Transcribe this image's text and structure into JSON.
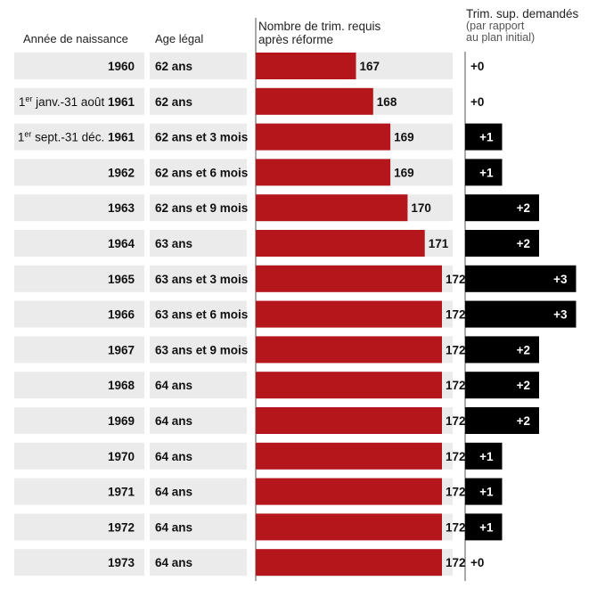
{
  "headers": {
    "year": "Année de naissance",
    "age": "Age légal",
    "quarters": "Nombre de trim. requis",
    "quarters_sub": "après réforme",
    "extra": "Trim. sup. demandés",
    "extra_sub1": "(par rapport",
    "extra_sub2": "au plan initial)"
  },
  "colors": {
    "row_bg": "#ebebeb",
    "bar": "#b5161c",
    "extra_bar": "#000000",
    "axis": "#555555"
  },
  "chart_data": {
    "type": "bar",
    "title": "",
    "xlabel": "Nombre de trim. requis après réforme",
    "ylabel": "Année de naissance",
    "grid": false,
    "legend": "none",
    "rows": [
      {
        "year_prefix": "",
        "year_sup": "",
        "year_rest": "",
        "year": "1960",
        "age": "62 ans",
        "quarters": 167,
        "extra": 0,
        "extra_label": "+0"
      },
      {
        "year_prefix": "1",
        "year_sup": "er",
        "year_rest": " janv.-31 août ",
        "year": "1961",
        "age": "62 ans",
        "quarters": 168,
        "extra": 0,
        "extra_label": "+0"
      },
      {
        "year_prefix": "1",
        "year_sup": "er",
        "year_rest": " sept.-31 déc. ",
        "year": "1961",
        "age": "62 ans et 3 mois",
        "quarters": 169,
        "extra": 1,
        "extra_label": "+1"
      },
      {
        "year_prefix": "",
        "year_sup": "",
        "year_rest": "",
        "year": "1962",
        "age": "62 ans et 6 mois",
        "quarters": 169,
        "extra": 1,
        "extra_label": "+1"
      },
      {
        "year_prefix": "",
        "year_sup": "",
        "year_rest": "",
        "year": "1963",
        "age": "62 ans et 9 mois",
        "quarters": 170,
        "extra": 2,
        "extra_label": "+2"
      },
      {
        "year_prefix": "",
        "year_sup": "",
        "year_rest": "",
        "year": "1964",
        "age": "63 ans",
        "quarters": 171,
        "extra": 2,
        "extra_label": "+2"
      },
      {
        "year_prefix": "",
        "year_sup": "",
        "year_rest": "",
        "year": "1965",
        "age": "63 ans et 3 mois",
        "quarters": 172,
        "extra": 3,
        "extra_label": "+3"
      },
      {
        "year_prefix": "",
        "year_sup": "",
        "year_rest": "",
        "year": "1966",
        "age": "63 ans et 6 mois",
        "quarters": 172,
        "extra": 3,
        "extra_label": "+3"
      },
      {
        "year_prefix": "",
        "year_sup": "",
        "year_rest": "",
        "year": "1967",
        "age": "63 ans et 9 mois",
        "quarters": 172,
        "extra": 2,
        "extra_label": "+2"
      },
      {
        "year_prefix": "",
        "year_sup": "",
        "year_rest": "",
        "year": "1968",
        "age": "64 ans",
        "quarters": 172,
        "extra": 2,
        "extra_label": "+2"
      },
      {
        "year_prefix": "",
        "year_sup": "",
        "year_rest": "",
        "year": "1969",
        "age": "64 ans",
        "quarters": 172,
        "extra": 2,
        "extra_label": "+2"
      },
      {
        "year_prefix": "",
        "year_sup": "",
        "year_rest": "",
        "year": "1970",
        "age": "64 ans",
        "quarters": 172,
        "extra": 1,
        "extra_label": "+1"
      },
      {
        "year_prefix": "",
        "year_sup": "",
        "year_rest": "",
        "year": "1971",
        "age": "64 ans",
        "quarters": 172,
        "extra": 1,
        "extra_label": "+1"
      },
      {
        "year_prefix": "",
        "year_sup": "",
        "year_rest": "",
        "year": "1972",
        "age": "64 ans",
        "quarters": 172,
        "extra": 1,
        "extra_label": "+1"
      },
      {
        "year_prefix": "",
        "year_sup": "",
        "year_rest": "",
        "year": "1973",
        "age": "64 ans",
        "quarters": 172,
        "extra": 0,
        "extra_label": "+0"
      }
    ]
  }
}
